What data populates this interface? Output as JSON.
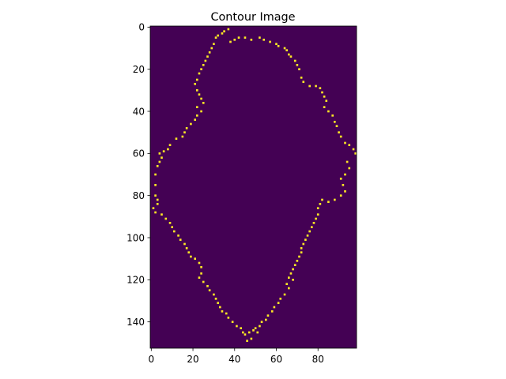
{
  "chart_data": {
    "type": "heatmap",
    "title": "Contour Image",
    "xlabel": "",
    "ylabel": "",
    "image_shape": [
      153,
      99
    ],
    "xlim": [
      -0.5,
      98.5
    ],
    "ylim": [
      152.5,
      -0.5
    ],
    "x_ticks": [
      0,
      20,
      40,
      60,
      80
    ],
    "y_ticks": [
      0,
      20,
      40,
      60,
      80,
      100,
      120,
      140
    ],
    "x_tick_labels": [
      "0",
      "20",
      "40",
      "60",
      "80"
    ],
    "y_tick_labels": [
      "0",
      "20",
      "40",
      "60",
      "80",
      "100",
      "120",
      "140"
    ],
    "colormap": "viridis",
    "background_value": 0,
    "contour_value": 1,
    "background_color": "#440154",
    "contour_color": "#fde725",
    "contour_points": [
      [
        37,
        1
      ],
      [
        35,
        2
      ],
      [
        34,
        3
      ],
      [
        32,
        4
      ],
      [
        31,
        5
      ],
      [
        42,
        5
      ],
      [
        45,
        5
      ],
      [
        52,
        5
      ],
      [
        40,
        6
      ],
      [
        48,
        6
      ],
      [
        54,
        6
      ],
      [
        38,
        7
      ],
      [
        57,
        7
      ],
      [
        60,
        8
      ],
      [
        61,
        9
      ],
      [
        30,
        8
      ],
      [
        29,
        10
      ],
      [
        28,
        12
      ],
      [
        64,
        10
      ],
      [
        65,
        11
      ],
      [
        66,
        13
      ],
      [
        27,
        14
      ],
      [
        67,
        14
      ],
      [
        26,
        16
      ],
      [
        25,
        18
      ],
      [
        69,
        16
      ],
      [
        70,
        18
      ],
      [
        24,
        20
      ],
      [
        71,
        20
      ],
      [
        23,
        22
      ],
      [
        72,
        24
      ],
      [
        22,
        25
      ],
      [
        73,
        26
      ],
      [
        21,
        27
      ],
      [
        76,
        28
      ],
      [
        79,
        28
      ],
      [
        81,
        29
      ],
      [
        82,
        31
      ],
      [
        83,
        33
      ],
      [
        22,
        30
      ],
      [
        23,
        32
      ],
      [
        84,
        35
      ],
      [
        83,
        38
      ],
      [
        24,
        34
      ],
      [
        25,
        36
      ],
      [
        22,
        38
      ],
      [
        85,
        40
      ],
      [
        87,
        42
      ],
      [
        24,
        40
      ],
      [
        22,
        42
      ],
      [
        21,
        44
      ],
      [
        88,
        45
      ],
      [
        89,
        47
      ],
      [
        19,
        46
      ],
      [
        17,
        48
      ],
      [
        90,
        50
      ],
      [
        91,
        52
      ],
      [
        16,
        50
      ],
      [
        15,
        52
      ],
      [
        12,
        53
      ],
      [
        93,
        55
      ],
      [
        95,
        56
      ],
      [
        97,
        58
      ],
      [
        98,
        60
      ],
      [
        9,
        56
      ],
      [
        8,
        58
      ],
      [
        6,
        59
      ],
      [
        4,
        60
      ],
      [
        5,
        62
      ],
      [
        4,
        64
      ],
      [
        94,
        64
      ],
      [
        95,
        67
      ],
      [
        3,
        66
      ],
      [
        2,
        70
      ],
      [
        2,
        75
      ],
      [
        93,
        70
      ],
      [
        91,
        72
      ],
      [
        92,
        75
      ],
      [
        93,
        78
      ],
      [
        2,
        80
      ],
      [
        3,
        82
      ],
      [
        91,
        80
      ],
      [
        88,
        82
      ],
      [
        85,
        83
      ],
      [
        82,
        82
      ],
      [
        81,
        84
      ],
      [
        3,
        84
      ],
      [
        1,
        86
      ],
      [
        2,
        88
      ],
      [
        80,
        86
      ],
      [
        80,
        89
      ],
      [
        5,
        89
      ],
      [
        7,
        91
      ],
      [
        79,
        91
      ],
      [
        78,
        93
      ],
      [
        9,
        93
      ],
      [
        10,
        95
      ],
      [
        77,
        95
      ],
      [
        76,
        97
      ],
      [
        11,
        97
      ],
      [
        13,
        99
      ],
      [
        75,
        99
      ],
      [
        74,
        101
      ],
      [
        14,
        101
      ],
      [
        16,
        103
      ],
      [
        73,
        103
      ],
      [
        72,
        105
      ],
      [
        17,
        105
      ],
      [
        18,
        107
      ],
      [
        72,
        107
      ],
      [
        71,
        109
      ],
      [
        19,
        109
      ],
      [
        21,
        110
      ],
      [
        70,
        111
      ],
      [
        69,
        113
      ],
      [
        23,
        112
      ],
      [
        24,
        114
      ],
      [
        68,
        115
      ],
      [
        67,
        117
      ],
      [
        24,
        117
      ],
      [
        23,
        119
      ],
      [
        66,
        119
      ],
      [
        68,
        120
      ],
      [
        25,
        121
      ],
      [
        27,
        123
      ],
      [
        65,
        122
      ],
      [
        66,
        124
      ],
      [
        28,
        125
      ],
      [
        30,
        127
      ],
      [
        64,
        127
      ],
      [
        62,
        129
      ],
      [
        31,
        129
      ],
      [
        32,
        131
      ],
      [
        61,
        131
      ],
      [
        59,
        133
      ],
      [
        33,
        133
      ],
      [
        34,
        135
      ],
      [
        58,
        135
      ],
      [
        56,
        137
      ],
      [
        36,
        136
      ],
      [
        37,
        138
      ],
      [
        55,
        139
      ],
      [
        53,
        140
      ],
      [
        39,
        140
      ],
      [
        41,
        142
      ],
      [
        52,
        142
      ],
      [
        50,
        143
      ],
      [
        43,
        143
      ],
      [
        44,
        145
      ],
      [
        45,
        146
      ],
      [
        47,
        145
      ],
      [
        49,
        144
      ],
      [
        51,
        145
      ],
      [
        48,
        148
      ],
      [
        46,
        149
      ]
    ]
  }
}
